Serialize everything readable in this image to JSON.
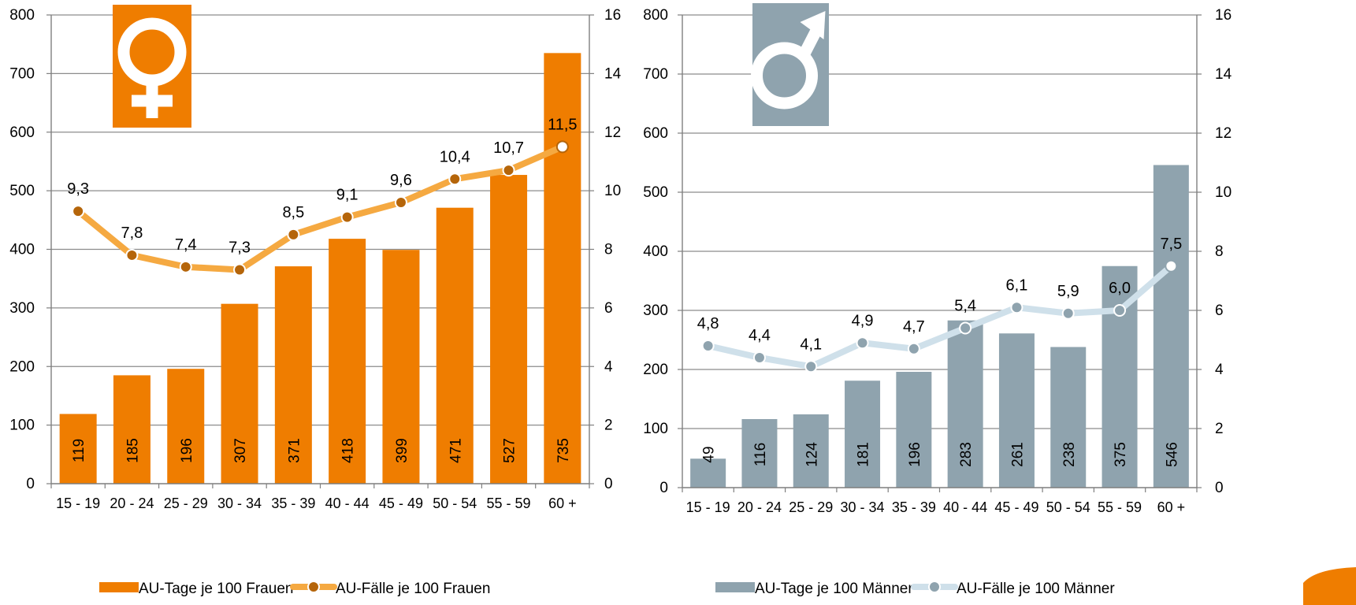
{
  "chart_data": [
    {
      "type": "bar+line",
      "title": "",
      "symbol": "female-symbol-icon",
      "categories": [
        "15 - 19",
        "20 - 24",
        "25 - 29",
        "30 - 34",
        "35 - 39",
        "40 - 44",
        "45 - 49",
        "50 - 54",
        "55 - 59",
        "60 +"
      ],
      "left_axis": {
        "min": 0,
        "max": 800,
        "ticks": [
          "0",
          "100",
          "200",
          "300",
          "400",
          "500",
          "600",
          "700",
          "800"
        ]
      },
      "right_axis": {
        "min": 0,
        "max": 16,
        "ticks": [
          "0",
          "2",
          "4",
          "6",
          "8",
          "10",
          "12",
          "14",
          "16"
        ]
      },
      "grid": true,
      "legend_position": "bottom",
      "bar_series": {
        "name": "AU-Tage je 100 Frauen",
        "axis": "left",
        "color": "#ef7d00",
        "values": [
          119,
          185,
          196,
          307,
          371,
          418,
          399,
          471,
          527,
          735
        ],
        "labels": [
          "119",
          "185",
          "196",
          "307",
          "371",
          "418",
          "399",
          "471",
          "527",
          "735"
        ]
      },
      "line_series": {
        "name": "AU-Fälle je 100 Frauen",
        "axis": "right",
        "color": "#f5a941",
        "marker_color": "#b5650a",
        "values": [
          9.3,
          7.8,
          7.4,
          7.3,
          8.5,
          9.1,
          9.6,
          10.4,
          10.7,
          11.5
        ],
        "labels": [
          "9,3",
          "7,8",
          "7,4",
          "7,3",
          "8,5",
          "9,1",
          "9,6",
          "10,4",
          "10,7",
          "11,5"
        ]
      }
    },
    {
      "type": "bar+line",
      "title": "",
      "symbol": "male-symbol-icon",
      "categories": [
        "15 - 19",
        "20 - 24",
        "25 - 29",
        "30 - 34",
        "35 - 39",
        "40 - 44",
        "45 - 49",
        "50 - 54",
        "55 - 59",
        "60 +"
      ],
      "left_axis": {
        "min": 0,
        "max": 800,
        "ticks": [
          "0",
          "100",
          "200",
          "300",
          "400",
          "500",
          "600",
          "700",
          "800"
        ]
      },
      "right_axis": {
        "min": 0,
        "max": 16,
        "ticks": [
          "0",
          "2",
          "4",
          "6",
          "8",
          "10",
          "12",
          "14",
          "16"
        ]
      },
      "grid": true,
      "legend_position": "bottom",
      "bar_series": {
        "name": "AU-Tage je 100 Männer",
        "axis": "left",
        "color": "#8fa3ae",
        "values": [
          49,
          116,
          124,
          181,
          196,
          283,
          261,
          238,
          375,
          546
        ],
        "labels": [
          "49",
          "116",
          "124",
          "181",
          "196",
          "283",
          "261",
          "238",
          "375",
          "546"
        ]
      },
      "line_series": {
        "name": "AU-Fälle je 100 Männer",
        "axis": "right",
        "color": "#cfe0ea",
        "marker_color": "#8fa3ae",
        "values": [
          4.8,
          4.4,
          4.1,
          4.9,
          4.7,
          5.4,
          6.1,
          5.9,
          6.0,
          7.5
        ],
        "labels": [
          "4,8",
          "4,4",
          "4,1",
          "4,9",
          "4,7",
          "5,4",
          "6,1",
          "5,9",
          "6,0",
          "7,5"
        ]
      }
    }
  ],
  "colors": {
    "grid": "#8c8c8c",
    "axis": "#7f7f7f",
    "corner_accent": "#ef7d00"
  }
}
